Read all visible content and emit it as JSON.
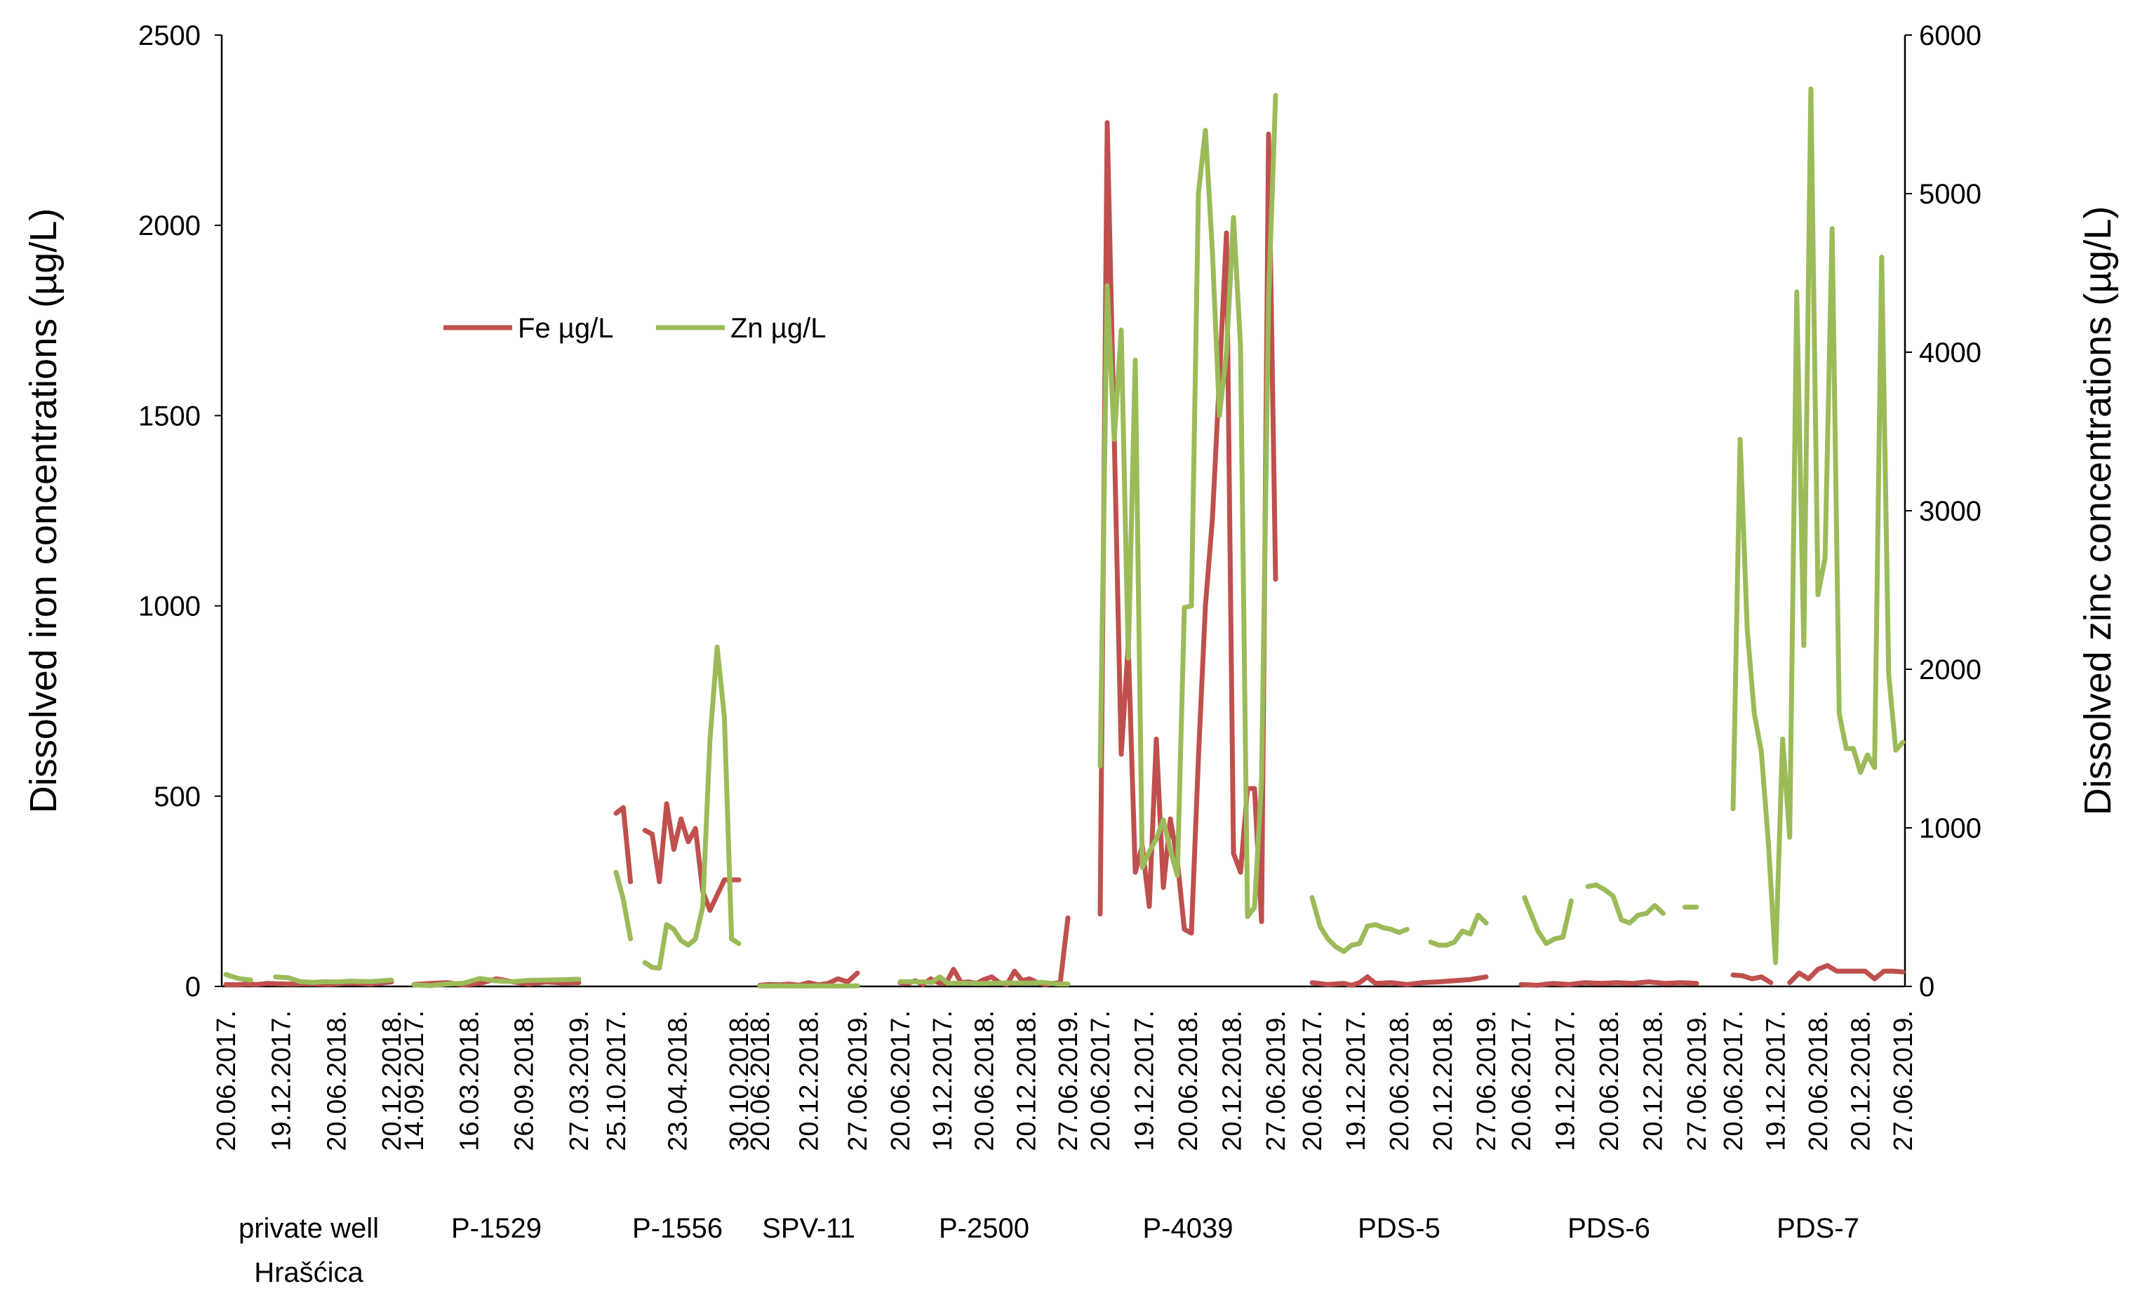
{
  "chart_data": {
    "type": "line",
    "ylabel": "Dissolved iron concentrations (µg/L)",
    "y2label": "Dissolved zinc concentrations (µg/L)",
    "ylim": [
      0,
      2500
    ],
    "y2lim": [
      0,
      6000
    ],
    "yticks": [
      "0",
      "500",
      "1000",
      "1500",
      "2000",
      "2500"
    ],
    "y2ticks": [
      "0",
      "1000",
      "2000",
      "3000",
      "4000",
      "5000",
      "6000"
    ],
    "legend_position": "top-left",
    "grid": false,
    "series": [
      {
        "name": "Fe µg/L",
        "color": "#c0504d",
        "axis": "left"
      },
      {
        "name": "Zn µg/L",
        "color": "#9bbb59",
        "axis": "right"
      }
    ],
    "groups": [
      {
        "label": [
          "private well",
          "Hrašćica"
        ],
        "x_ticks": [
          "20.06.2017.",
          "19.12.2017.",
          "20.06.2018.",
          "20.12.2018."
        ],
        "fe": [
          [
            0,
            5
          ],
          [
            0.25,
            4
          ],
          [
            0.5,
            6
          ],
          [
            0.75,
            5
          ],
          [
            1,
            8
          ],
          [
            1.5,
            6
          ],
          [
            2,
            7
          ],
          [
            2.5,
            5
          ],
          [
            3,
            9
          ],
          [
            3.5,
            6
          ],
          [
            4,
            12
          ]
        ],
        "zn": [
          [
            0,
            75
          ],
          [
            0.3,
            50
          ],
          [
            0.6,
            40
          ],
          [
            null,
            null
          ],
          [
            1.2,
            60
          ],
          [
            1.5,
            55
          ],
          [
            1.8,
            30
          ],
          [
            2.1,
            25
          ],
          [
            2.4,
            30
          ],
          [
            2.7,
            28
          ],
          [
            3.0,
            33
          ],
          [
            3.5,
            30
          ],
          [
            4,
            40
          ]
        ]
      },
      {
        "label": [
          "P-1529"
        ],
        "x_ticks": [
          "14.09.2017.",
          "16.03.2018.",
          "26.09.2018.",
          "27.03.2019."
        ],
        "fe": [
          [
            0,
            5
          ],
          [
            0.5,
            8
          ],
          [
            1,
            10
          ],
          [
            1.5,
            4
          ],
          [
            2,
            8
          ],
          [
            2.5,
            20
          ],
          [
            3,
            12
          ],
          [
            3.5,
            6
          ],
          [
            4,
            12
          ],
          [
            4.5,
            9
          ],
          [
            5,
            10
          ]
        ],
        "zn": [
          [
            0,
            10
          ],
          [
            0.5,
            5
          ],
          [
            1,
            15
          ],
          [
            1.5,
            20
          ],
          [
            2,
            50
          ],
          [
            2.5,
            35
          ],
          [
            3,
            30
          ],
          [
            3.5,
            38
          ],
          [
            4,
            40
          ],
          [
            4.5,
            42
          ],
          [
            5,
            45
          ]
        ]
      },
      {
        "label": [
          "P-1556"
        ],
        "x_ticks": [
          "25.10.2017.",
          "23.04.2018.",
          "30.10.2018."
        ],
        "fe": [
          [
            0,
            455
          ],
          [
            0.4,
            470
          ],
          [
            0.8,
            275
          ],
          [
            null,
            null
          ],
          [
            1.6,
            410
          ],
          [
            2.0,
            400
          ],
          [
            2.4,
            275
          ],
          [
            2.8,
            480
          ],
          [
            3.2,
            360
          ],
          [
            3.6,
            440
          ],
          [
            4.0,
            380
          ],
          [
            4.4,
            415
          ],
          [
            4.8,
            250
          ],
          [
            5.2,
            200
          ],
          [
            5.6,
            240
          ],
          [
            6.0,
            280
          ],
          [
            6.8,
            280
          ]
        ],
        "zn": [
          [
            0,
            720
          ],
          [
            0.4,
            550
          ],
          [
            0.8,
            300
          ],
          [
            null,
            null
          ],
          [
            1.6,
            150
          ],
          [
            2.0,
            120
          ],
          [
            2.4,
            115
          ],
          [
            2.8,
            390
          ],
          [
            3.2,
            360
          ],
          [
            3.6,
            290
          ],
          [
            4.0,
            260
          ],
          [
            4.4,
            300
          ],
          [
            4.8,
            500
          ],
          [
            5.2,
            1550
          ],
          [
            5.6,
            2140
          ],
          [
            6.0,
            1700
          ],
          [
            6.4,
            300
          ],
          [
            6.8,
            270
          ]
        ]
      },
      {
        "label": [
          "SPV-11"
        ],
        "x_ticks": [
          "20.06.2018.",
          "20.12.2018.",
          "27.06.2019."
        ],
        "fe": [
          [
            0,
            3
          ],
          [
            0.5,
            5
          ],
          [
            1,
            4
          ],
          [
            1.5,
            6
          ],
          [
            2,
            3
          ],
          [
            2.5,
            10
          ],
          [
            3,
            4
          ],
          [
            3.5,
            8
          ],
          [
            4,
            20
          ],
          [
            4.5,
            12
          ],
          [
            5,
            35
          ]
        ],
        "zn": [
          [
            0,
            2
          ],
          [
            1,
            3
          ],
          [
            2,
            2
          ],
          [
            3,
            3
          ],
          [
            4,
            2
          ],
          [
            5,
            3
          ]
        ]
      },
      {
        "label": [
          "P-2500"
        ],
        "x_ticks": [
          "20.06.2017.",
          "19.12.2017.",
          "20.06.2018.",
          "20.12.2018.",
          "27.06.2019."
        ],
        "fe": [
          [
            0,
            10
          ],
          [
            0.5,
            8
          ],
          [
            1,
            15
          ],
          [
            1.5,
            5
          ],
          [
            2,
            20
          ],
          [
            2.5,
            10
          ],
          [
            3,
            8
          ],
          [
            3.5,
            45
          ],
          [
            4,
            10
          ],
          [
            4.5,
            12
          ],
          [
            5,
            8
          ],
          [
            5.5,
            18
          ],
          [
            6,
            25
          ],
          [
            6.5,
            10
          ],
          [
            7,
            5
          ],
          [
            7.5,
            40
          ],
          [
            8,
            15
          ],
          [
            8.5,
            20
          ],
          [
            9,
            10
          ],
          [
            9.5,
            5
          ],
          [
            10,
            8
          ],
          [
            10.5,
            10
          ],
          [
            11,
            180
          ]
        ],
        "zn": [
          [
            0,
            30
          ],
          [
            1,
            30
          ],
          [
            2,
            25
          ],
          [
            2.5,
            60
          ],
          [
            3,
            20
          ],
          [
            4,
            20
          ],
          [
            5,
            18
          ],
          [
            6,
            20
          ],
          [
            7,
            22
          ],
          [
            8,
            20
          ],
          [
            9,
            25
          ],
          [
            10,
            15
          ],
          [
            10.6,
            15
          ]
        ]
      },
      {
        "label": [
          "P-4039"
        ],
        "x_ticks": [
          "20.06.2017.",
          "19.12.2017.",
          "20.06.2018.",
          "20.12.2018.",
          "27.06.2019."
        ],
        "fe": [
          [
            0,
            190
          ],
          [
            0.5,
            2270
          ],
          [
            1,
            1450
          ],
          [
            1.5,
            610
          ],
          [
            2,
            900
          ],
          [
            2.5,
            300
          ],
          [
            3,
            370
          ],
          [
            3.5,
            210
          ],
          [
            4,
            650
          ],
          [
            4.5,
            260
          ],
          [
            5,
            440
          ],
          [
            5.5,
            330
          ],
          [
            6,
            150
          ],
          [
            6.5,
            140
          ],
          [
            7,
            600
          ],
          [
            7.5,
            1000
          ],
          [
            8,
            1230
          ],
          [
            8.5,
            1600
          ],
          [
            9,
            1980
          ],
          [
            9.5,
            350
          ],
          [
            10,
            300
          ],
          [
            10.5,
            520
          ],
          [
            11,
            520
          ],
          [
            11.5,
            170
          ],
          [
            12,
            2240
          ],
          [
            12.5,
            1070
          ]
        ],
        "zn": [
          [
            0,
            1390
          ],
          [
            0.5,
            4420
          ],
          [
            1,
            3450
          ],
          [
            1.5,
            4140
          ],
          [
            2,
            2070
          ],
          [
            2.5,
            3950
          ],
          [
            3,
            750
          ],
          [
            3.5,
            850
          ],
          [
            4,
            930
          ],
          [
            4.5,
            1050
          ],
          [
            5,
            860
          ],
          [
            5.5,
            700
          ],
          [
            6,
            2390
          ],
          [
            6.5,
            2400
          ],
          [
            7,
            5000
          ],
          [
            7.5,
            5400
          ],
          [
            8,
            4630
          ],
          [
            8.5,
            3600
          ],
          [
            9,
            4000
          ],
          [
            9.5,
            4850
          ],
          [
            10,
            4040
          ],
          [
            10.5,
            440
          ],
          [
            11,
            500
          ],
          [
            11.5,
            1300
          ],
          [
            12,
            4330
          ],
          [
            12.5,
            5620
          ]
        ]
      },
      {
        "label": [
          "PDS-5"
        ],
        "x_ticks": [
          "20.06.2017.",
          "19.12.2017.",
          "20.06.2018.",
          "20.12.2018.",
          "27.06.2019."
        ],
        "fe": [
          [
            0,
            10
          ],
          [
            1,
            5
          ],
          [
            2,
            8
          ],
          [
            2.5,
            3
          ],
          [
            3,
            10
          ],
          [
            3.5,
            25
          ],
          [
            4,
            8
          ],
          [
            5,
            10
          ],
          [
            6,
            5
          ],
          [
            7,
            10
          ],
          [
            8,
            12
          ],
          [
            9,
            15
          ],
          [
            10,
            18
          ],
          [
            11,
            25
          ]
        ],
        "zn": [
          [
            0,
            560
          ],
          [
            0.5,
            380
          ],
          [
            1,
            300
          ],
          [
            1.5,
            250
          ],
          [
            2,
            220
          ],
          [
            2.5,
            260
          ],
          [
            3,
            270
          ],
          [
            3.5,
            380
          ],
          [
            4,
            390
          ],
          [
            4.5,
            370
          ],
          [
            5,
            360
          ],
          [
            5.5,
            340
          ],
          [
            6,
            360
          ],
          [
            null,
            null
          ],
          [
            7.5,
            280
          ],
          [
            8,
            260
          ],
          [
            8.5,
            260
          ],
          [
            9,
            280
          ],
          [
            9.5,
            350
          ],
          [
            10,
            330
          ],
          [
            10.5,
            450
          ],
          [
            11,
            400
          ]
        ]
      },
      {
        "label": [
          "PDS-6"
        ],
        "x_ticks": [
          "20.06.2017.",
          "19.12.2017.",
          "20.06.2018.",
          "20.12.2018.",
          "27.06.2019."
        ],
        "fe": [
          [
            0,
            5
          ],
          [
            1,
            3
          ],
          [
            2,
            8
          ],
          [
            3,
            5
          ],
          [
            4,
            10
          ],
          [
            5,
            8
          ],
          [
            6,
            10
          ],
          [
            7,
            8
          ],
          [
            8,
            12
          ],
          [
            9,
            8
          ],
          [
            10,
            10
          ],
          [
            11,
            8
          ]
        ],
        "zn": [
          [
            0.2,
            560
          ],
          [
            1,
            350
          ],
          [
            1.5,
            270
          ],
          [
            2,
            300
          ],
          [
            2.5,
            310
          ],
          [
            3,
            540
          ],
          [
            null,
            null
          ],
          [
            4,
            630
          ],
          [
            4.5,
            640
          ],
          [
            5,
            610
          ],
          [
            5.5,
            570
          ],
          [
            6,
            420
          ],
          [
            6.5,
            400
          ],
          [
            7,
            450
          ],
          [
            7.5,
            460
          ],
          [
            8,
            510
          ],
          [
            8.5,
            460
          ],
          [
            null,
            null
          ],
          [
            9.8,
            500
          ],
          [
            10.5,
            500
          ]
        ]
      },
      {
        "label": [
          "PDS-7"
        ],
        "x_ticks": [
          "20.06.2017.",
          "19.12.2017.",
          "20.06.2018.",
          "20.12.2018.",
          "27.06.2019."
        ],
        "fe": [
          [
            0,
            30
          ],
          [
            0.5,
            28
          ],
          [
            1,
            20
          ],
          [
            1.5,
            25
          ],
          [
            2,
            10
          ],
          [
            null,
            null
          ],
          [
            3,
            10
          ],
          [
            3.5,
            35
          ],
          [
            4,
            20
          ],
          [
            4.5,
            45
          ],
          [
            5,
            55
          ],
          [
            5.5,
            40
          ],
          [
            6,
            40
          ],
          [
            6.5,
            40
          ],
          [
            7,
            40
          ],
          [
            7.5,
            20
          ],
          [
            8,
            40
          ],
          [
            8.5,
            40
          ],
          [
            9,
            38
          ]
        ],
        "zn": [
          [
            0,
            1120
          ],
          [
            0.4,
            3450
          ],
          [
            0.8,
            2250
          ],
          [
            1.2,
            1720
          ],
          [
            1.6,
            1480
          ],
          [
            2,
            900
          ],
          [
            2.4,
            150
          ],
          [
            2.8,
            1560
          ],
          [
            3.2,
            940
          ],
          [
            3.6,
            4380
          ],
          [
            4,
            2150
          ],
          [
            4.4,
            5660
          ],
          [
            4.8,
            2470
          ],
          [
            5.2,
            2700
          ],
          [
            5.6,
            4780
          ],
          [
            6,
            1720
          ],
          [
            6.4,
            1500
          ],
          [
            6.8,
            1500
          ],
          [
            7.2,
            1350
          ],
          [
            7.6,
            1460
          ],
          [
            8,
            1380
          ],
          [
            8.4,
            4600
          ],
          [
            8.8,
            1970
          ],
          [
            9.2,
            1490
          ],
          [
            9.6,
            1540
          ]
        ]
      }
    ]
  }
}
